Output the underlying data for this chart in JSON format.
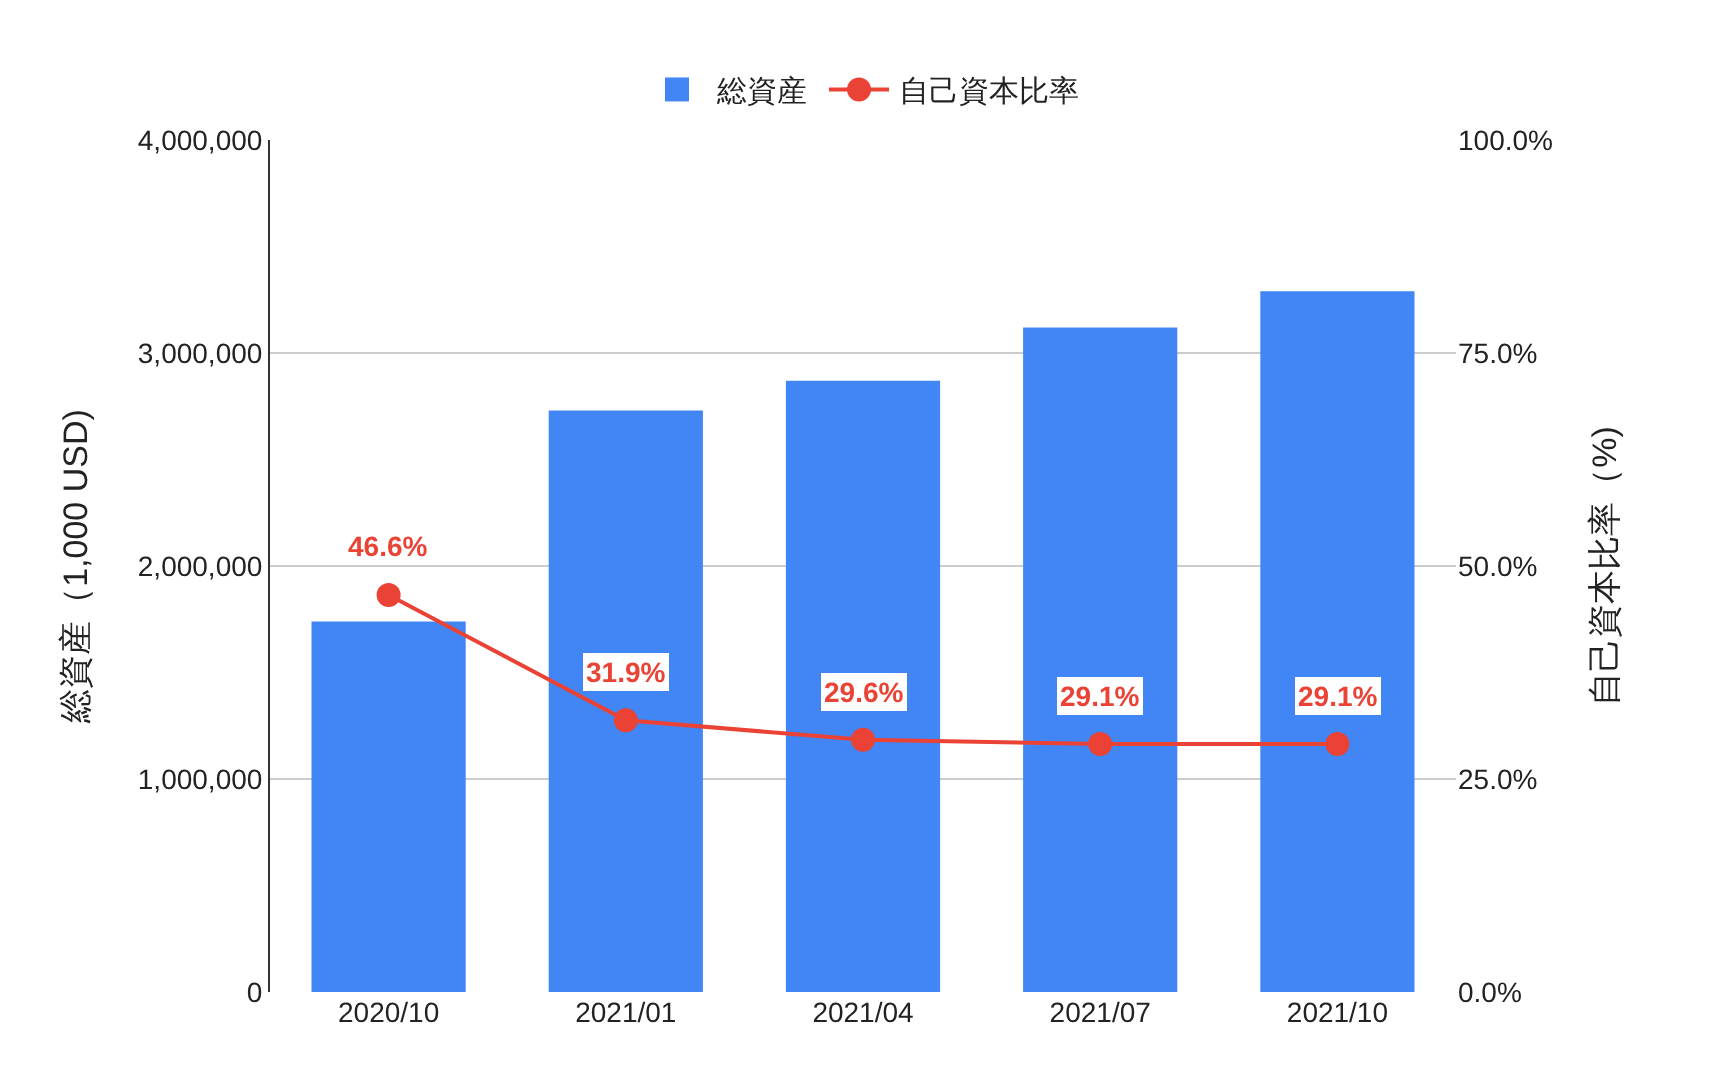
{
  "chart_data": {
    "type": "bar",
    "categories": [
      "2020/10",
      "2021/01",
      "2021/04",
      "2021/07",
      "2021/10"
    ],
    "series": [
      {
        "name": "総資産",
        "color": "#4285f4",
        "values": [
          1740000,
          2730000,
          2870000,
          3120000,
          3290000
        ]
      },
      {
        "name": "自己資本比率",
        "type": "line",
        "axis": "y2",
        "color": "#ea4335",
        "values": [
          46.6,
          31.9,
          29.6,
          29.1,
          29.1
        ],
        "value_labels": [
          "46.6%",
          "31.9%",
          "29.6%",
          "29.1%",
          "29.1%"
        ]
      }
    ],
    "ylabel": "総資産（1,000 USD)",
    "y2label": "自己資本比率（%)",
    "ylim": [
      0,
      4000000
    ],
    "yticks": [
      0,
      {
        "value": 1000000,
        "label": "1,000,000"
      },
      {
        "value": 2000000,
        "label": "2,000,000"
      },
      {
        "value": 3000000,
        "label": "3,000,000"
      },
      {
        "value": 4000000,
        "label": "4,000,000"
      }
    ],
    "y2lim": [
      0,
      100
    ],
    "y2ticks": [
      {
        "value": 0,
        "label": "0.0%"
      },
      {
        "value": 25,
        "label": "25.0%"
      },
      {
        "value": 50,
        "label": "50.0%"
      },
      {
        "value": 75,
        "label": "75.0%"
      },
      {
        "value": 100,
        "label": "100.0%"
      }
    ],
    "grid": "y",
    "legend": "top",
    "marker": "circle",
    "line_style": "solid"
  }
}
